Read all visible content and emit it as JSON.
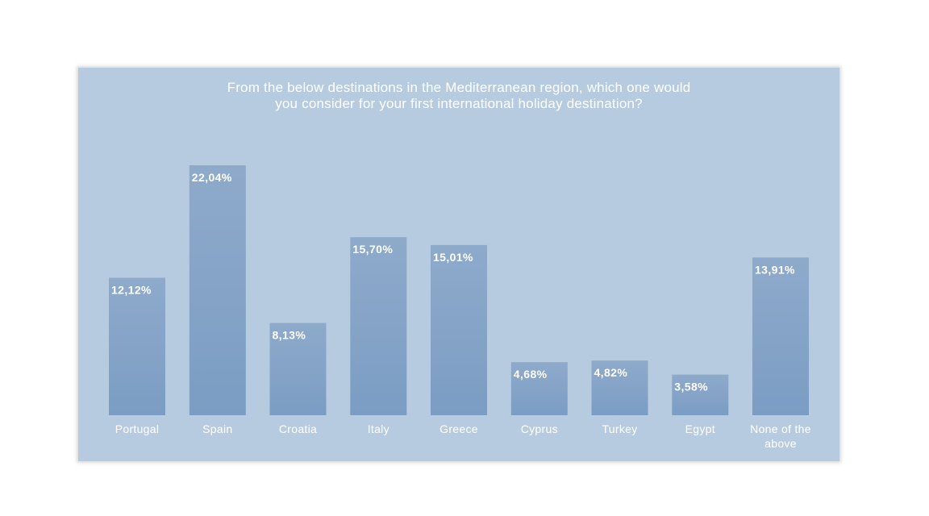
{
  "chart_data": {
    "type": "bar",
    "title_lines": [
      "From the below destinations in the Mediterranean region, which one would",
      "you consider for your first international holiday destination?"
    ],
    "categories": [
      "Portugal",
      "Spain",
      "Croatia",
      "Italy",
      "Greece",
      "Cyprus",
      "Turkey",
      "Egypt",
      "None of the above"
    ],
    "category_lines": [
      [
        "Portugal"
      ],
      [
        "Spain"
      ],
      [
        "Croatia"
      ],
      [
        "Italy"
      ],
      [
        "Greece"
      ],
      [
        "Cyprus"
      ],
      [
        "Turkey"
      ],
      [
        "Egypt"
      ],
      [
        "None of the",
        "above"
      ]
    ],
    "values": [
      12.12,
      22.04,
      8.13,
      15.7,
      15.01,
      4.68,
      4.82,
      3.58,
      13.91
    ],
    "value_labels": [
      "12,12%",
      "22,04%",
      "8,13%",
      "15,70%",
      "15,01%",
      "4,68%",
      "4,82%",
      "3,58%",
      "13,91%"
    ],
    "ylim": [
      0,
      22.04
    ],
    "grid": false,
    "legend": "none",
    "colors": {
      "panel": "#b6cbe0",
      "bar_top": "#8eaacb",
      "bar_bottom": "#7b9dc3",
      "text": "#ffffff"
    }
  }
}
